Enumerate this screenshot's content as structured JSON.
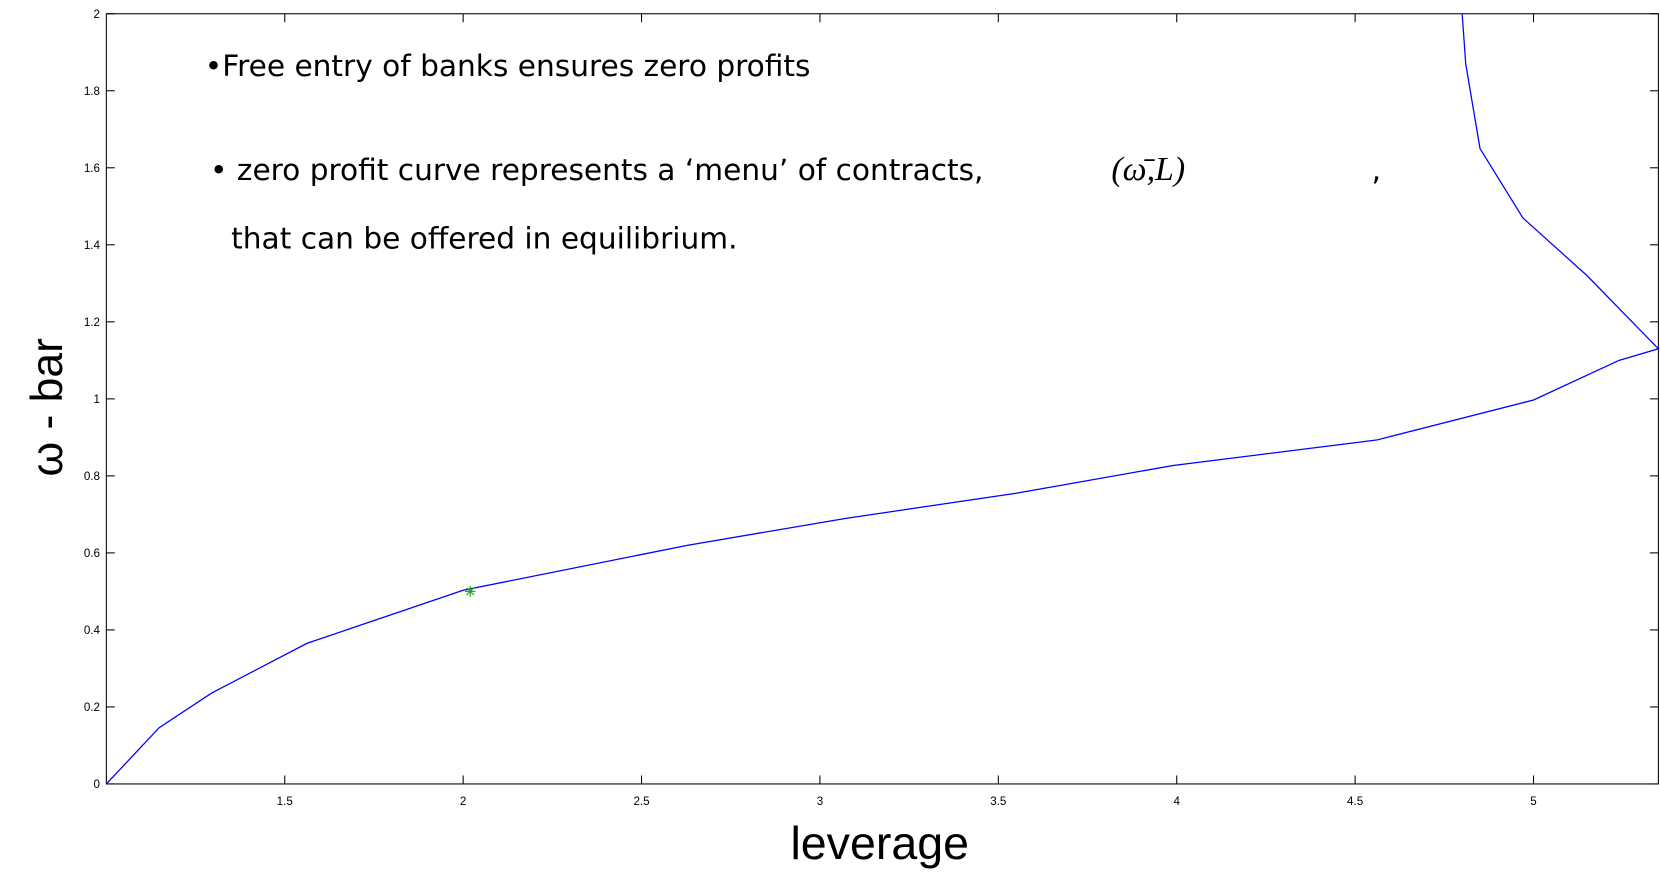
{
  "chart_data": {
    "type": "line",
    "xlabel": "leverage",
    "ylabel": "ω - bar",
    "annotations": [
      "•Free entry of banks ensures zero profits",
      "• zero profit curve represents a ‘menu’ of contracts,",
      "(ω̄,L)",
      ",",
      "that can be offered in equilibrium."
    ],
    "x": [
      1,
      1.148,
      1.295,
      1.562,
      2.0,
      2.63,
      3.075,
      3.55,
      3.99,
      4.56,
      5.0,
      5.24,
      5.35,
      5.15,
      4.97,
      4.85,
      4.81,
      4.8
    ],
    "series": [
      {
        "color": "#0000ff",
        "values": [
          0,
          0.146,
          0.236,
          0.365,
          0.503,
          0.62,
          0.69,
          0.755,
          0.827,
          0.893,
          0.997,
          1.1,
          1.13,
          1.32,
          1.47,
          1.65,
          1.87,
          2.0
        ]
      }
    ],
    "points": [
      {
        "x": 2.02,
        "y": 0.5,
        "color": "#22aa22"
      }
    ],
    "xlim": [
      1,
      5.35
    ],
    "ylim": [
      0,
      2
    ],
    "xticks": [
      1.5,
      2,
      2.5,
      3,
      3.5,
      4,
      4.5,
      5
    ],
    "yticks": [
      0,
      0.2,
      0.4,
      0.6,
      0.8,
      1,
      1.2,
      1.4,
      1.6,
      1.8,
      2
    ],
    "grid": false
  }
}
